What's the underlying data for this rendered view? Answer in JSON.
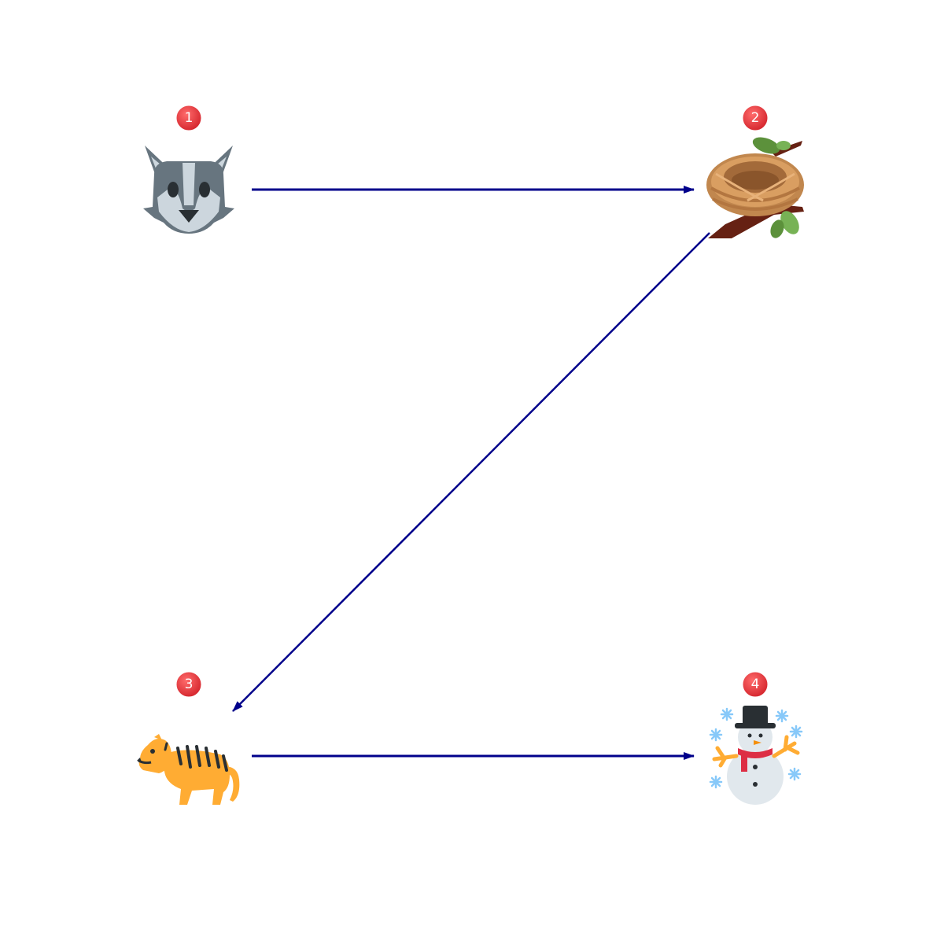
{
  "nodes": [
    {
      "id": "n1",
      "number": "1",
      "icon": "wolf-icon"
    },
    {
      "id": "n2",
      "number": "2",
      "icon": "nest-with-branch-icon"
    },
    {
      "id": "n3",
      "number": "3",
      "icon": "tiger-icon"
    },
    {
      "id": "n4",
      "number": "4",
      "icon": "snowman-with-snow-icon"
    }
  ],
  "edges": [
    {
      "from": "n1",
      "to": "n2"
    },
    {
      "from": "n2",
      "to": "n3"
    },
    {
      "from": "n3",
      "to": "n4"
    }
  ],
  "colors": {
    "arrow": "#00008b",
    "badge": "#e8333a",
    "badge_text": "#ffffff"
  }
}
